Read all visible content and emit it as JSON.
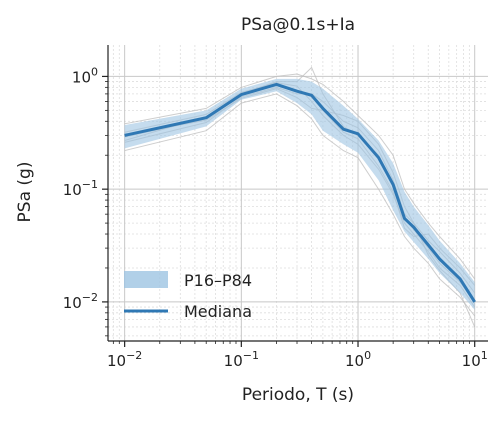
{
  "chart_data": {
    "type": "line",
    "title": "PSa@0.1s+Ia",
    "xlabel": "Periodo, T (s)",
    "ylabel": "PSa (g)",
    "xscale": "log",
    "yscale": "log",
    "xlim": [
      0.0072,
      13
    ],
    "ylim": [
      0.0045,
      1.9
    ],
    "grid": true,
    "legend_position": "lower-left",
    "x_ticks": [
      {
        "value": 0.01,
        "base": "10",
        "exp": "−2"
      },
      {
        "value": 0.1,
        "base": "10",
        "exp": "−1"
      },
      {
        "value": 1,
        "base": "10",
        "exp": "0"
      },
      {
        "value": 10,
        "base": "10",
        "exp": "1"
      }
    ],
    "y_ticks": [
      {
        "value": 0.01,
        "base": "10",
        "exp": "−2"
      },
      {
        "value": 0.1,
        "base": "10",
        "exp": "−1"
      },
      {
        "value": 1,
        "base": "10",
        "exp": "0"
      }
    ],
    "x": [
      0.01,
      0.05,
      0.1,
      0.2,
      0.3,
      0.4,
      0.5,
      0.75,
      1.0,
      1.5,
      2.0,
      2.5,
      3.0,
      4.0,
      5.0,
      7.5,
      10.0
    ],
    "band": {
      "name": "P16–P84",
      "lower": [
        0.23,
        0.36,
        0.62,
        0.74,
        0.58,
        0.46,
        0.33,
        0.25,
        0.21,
        0.12,
        0.065,
        0.042,
        0.034,
        0.024,
        0.018,
        0.012,
        0.0085
      ],
      "upper": [
        0.37,
        0.5,
        0.78,
        0.95,
        0.95,
        0.9,
        0.78,
        0.55,
        0.42,
        0.27,
        0.17,
        0.095,
        0.07,
        0.048,
        0.035,
        0.022,
        0.015
      ]
    },
    "median": {
      "name": "Mediana",
      "values": [
        0.3,
        0.43,
        0.69,
        0.85,
        0.74,
        0.68,
        0.52,
        0.34,
        0.31,
        0.19,
        0.11,
        0.055,
        0.046,
        0.032,
        0.024,
        0.016,
        0.01
      ]
    },
    "records": [
      [
        0.26,
        0.39,
        0.66,
        0.8,
        0.7,
        0.7,
        0.6,
        0.4,
        0.35,
        0.22,
        0.12,
        0.06,
        0.05,
        0.035,
        0.028,
        0.018,
        0.012
      ],
      [
        0.32,
        0.46,
        0.72,
        0.88,
        0.82,
        0.6,
        0.45,
        0.3,
        0.25,
        0.15,
        0.09,
        0.05,
        0.04,
        0.028,
        0.02,
        0.014,
        0.009
      ],
      [
        0.22,
        0.33,
        0.58,
        0.7,
        0.55,
        0.42,
        0.3,
        0.22,
        0.19,
        0.1,
        0.06,
        0.038,
        0.03,
        0.022,
        0.016,
        0.011,
        0.0075
      ],
      [
        0.38,
        0.52,
        0.8,
        1.0,
        1.05,
        0.95,
        0.85,
        0.6,
        0.45,
        0.3,
        0.2,
        0.1,
        0.075,
        0.05,
        0.038,
        0.024,
        0.016
      ],
      [
        0.29,
        0.42,
        0.7,
        0.9,
        0.9,
        1.2,
        0.7,
        0.36,
        0.3,
        0.2,
        0.11,
        0.055,
        0.044,
        0.03,
        0.022,
        0.015,
        0.01
      ],
      [
        0.3,
        0.41,
        0.64,
        0.78,
        0.65,
        0.52,
        0.5,
        0.45,
        0.4,
        0.25,
        0.14,
        0.07,
        0.05,
        0.026,
        0.019,
        0.012,
        0.006
      ],
      [
        0.27,
        0.44,
        0.68,
        0.84,
        0.75,
        0.66,
        0.5,
        0.32,
        0.28,
        0.16,
        0.095,
        0.045,
        0.038,
        0.04,
        0.03,
        0.02,
        0.014
      ]
    ]
  }
}
